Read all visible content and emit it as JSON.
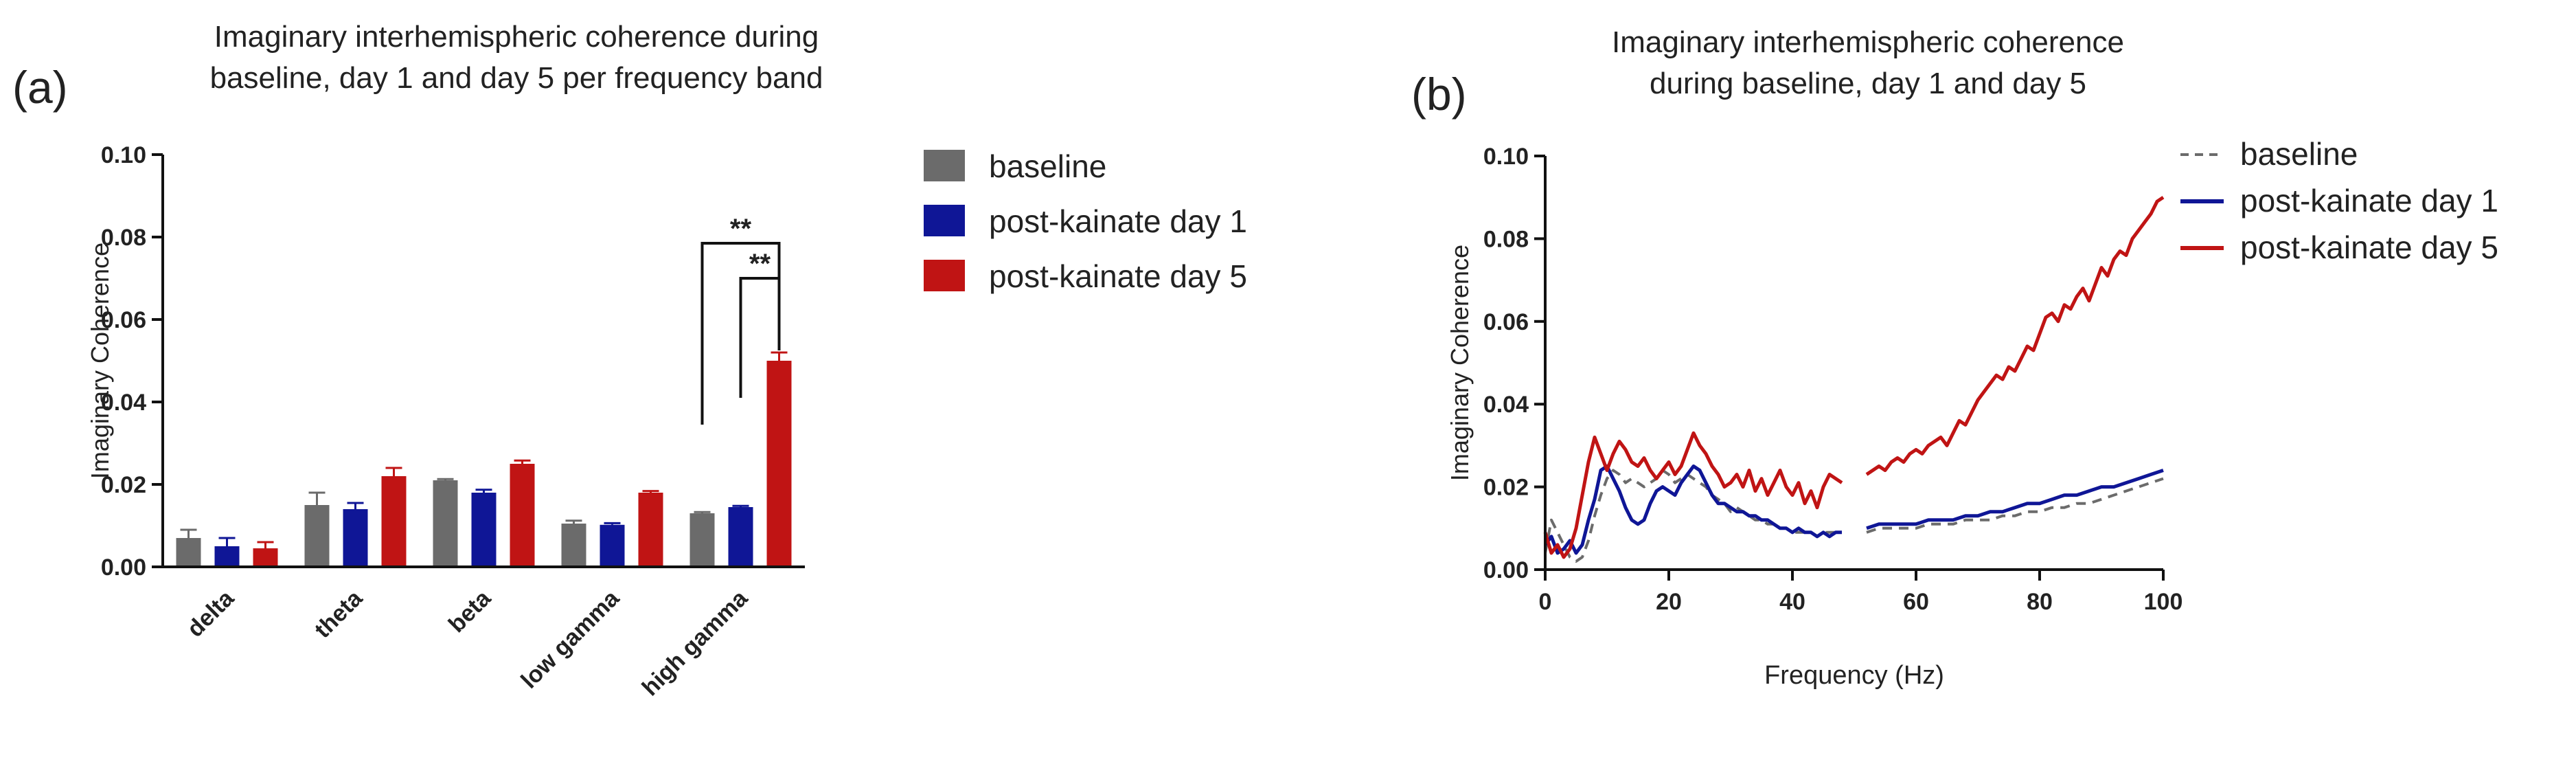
{
  "panel_a": {
    "letter": "(a)",
    "title_lines": [
      "Imaginary interhemispheric coherence during",
      "baseline, day 1 and day 5 per frequency band"
    ]
  },
  "panel_b": {
    "letter": "(b)",
    "title_lines": [
      "Imaginary interhemispheric coherence",
      "during baseline, day 1 and day 5"
    ]
  },
  "colors": {
    "baseline": "#6b6b6b",
    "day1": "#0f1696",
    "day5": "#c01414"
  },
  "chart_data": [
    {
      "type": "bar",
      "title": "Imaginary interhemispheric coherence during baseline, day 1 and day 5 per frequency band",
      "xlabel": "",
      "ylabel": "Imaginary Coherence",
      "ylim": [
        0,
        0.1
      ],
      "yticks": [
        "0.00",
        "0.02",
        "0.04",
        "0.06",
        "0.08",
        "0.10"
      ],
      "categories": [
        "delta",
        "theta",
        "beta",
        "low gamma",
        "high gamma"
      ],
      "series": [
        {
          "name": "baseline",
          "values": [
            0.007,
            0.015,
            0.021,
            0.0105,
            0.013
          ],
          "errors": [
            0.002,
            0.003,
            0.0003,
            0.0007,
            0.0003
          ]
        },
        {
          "name": "post-kainate day 1",
          "values": [
            0.005,
            0.014,
            0.018,
            0.0102,
            0.0145
          ],
          "errors": [
            0.002,
            0.0015,
            0.0007,
            0.0004,
            0.0003
          ]
        },
        {
          "name": "post-kainate day 5",
          "values": [
            0.0045,
            0.022,
            0.025,
            0.018,
            0.05
          ],
          "errors": [
            0.0015,
            0.002,
            0.0008,
            0.0004,
            0.002
          ]
        }
      ],
      "legend_position": "right",
      "annotations": [
        {
          "text": "**",
          "category": "high gamma",
          "from": "baseline",
          "to": "post-kainate day 5"
        },
        {
          "text": "**",
          "category": "high gamma",
          "from": "post-kainate day 1",
          "to": "post-kainate day 5"
        }
      ]
    },
    {
      "type": "line",
      "title": "Imaginary interhemispheric coherence during baseline, day 1 and day 5",
      "xlabel": "Frequency (Hz)",
      "ylabel": "Imaginary Coherence",
      "xlim": [
        0,
        100
      ],
      "ylim": [
        0,
        0.1
      ],
      "xticks": [
        "0",
        "20",
        "40",
        "60",
        "80",
        "100"
      ],
      "yticks": [
        "0.00",
        "0.02",
        "0.04",
        "0.06",
        "0.08",
        "0.10"
      ],
      "legend_position": "top-right",
      "series": [
        {
          "name": "baseline",
          "style": "dashed",
          "x": [
            0,
            1,
            2,
            3,
            4,
            5,
            6,
            7,
            8,
            9,
            10,
            11,
            12,
            13,
            14,
            15,
            16,
            17,
            18,
            19,
            20,
            21,
            22,
            23,
            24,
            25,
            26,
            27,
            28,
            29,
            30,
            31,
            32,
            33,
            34,
            35,
            36,
            37,
            38,
            39,
            40,
            41,
            42,
            43,
            44,
            45,
            46,
            47,
            48,
            null,
            52,
            54,
            56,
            58,
            60,
            62,
            64,
            66,
            68,
            70,
            72,
            74,
            76,
            78,
            80,
            82,
            84,
            86,
            88,
            90,
            92,
            94,
            96,
            98,
            100
          ],
          "y": [
            0.004,
            0.012,
            0.009,
            0.006,
            0.003,
            0.002,
            0.003,
            0.007,
            0.013,
            0.018,
            0.022,
            0.024,
            0.023,
            0.021,
            0.022,
            0.021,
            0.02,
            0.021,
            0.022,
            0.024,
            0.023,
            0.021,
            0.022,
            0.023,
            0.022,
            0.021,
            0.02,
            0.018,
            0.017,
            0.016,
            0.014,
            0.015,
            0.014,
            0.013,
            0.012,
            0.012,
            0.011,
            0.011,
            0.01,
            0.01,
            0.009,
            0.009,
            0.009,
            0.009,
            0.008,
            0.009,
            0.009,
            0.009,
            0.009,
            null,
            0.009,
            0.01,
            0.01,
            0.01,
            0.01,
            0.011,
            0.011,
            0.011,
            0.012,
            0.012,
            0.012,
            0.013,
            0.013,
            0.014,
            0.014,
            0.015,
            0.015,
            0.016,
            0.016,
            0.017,
            0.018,
            0.019,
            0.02,
            0.021,
            0.022
          ]
        },
        {
          "name": "post-kainate day 1",
          "style": "solid",
          "x": [
            0,
            1,
            2,
            3,
            4,
            5,
            6,
            7,
            8,
            9,
            10,
            11,
            12,
            13,
            14,
            15,
            16,
            17,
            18,
            19,
            20,
            21,
            22,
            23,
            24,
            25,
            26,
            27,
            28,
            29,
            30,
            31,
            32,
            33,
            34,
            35,
            36,
            37,
            38,
            39,
            40,
            41,
            42,
            43,
            44,
            45,
            46,
            47,
            48,
            null,
            52,
            54,
            56,
            58,
            60,
            62,
            64,
            66,
            68,
            70,
            72,
            74,
            76,
            78,
            80,
            82,
            84,
            86,
            88,
            90,
            92,
            94,
            96,
            98,
            100
          ],
          "y": [
            0.006,
            0.008,
            0.004,
            0.005,
            0.007,
            0.004,
            0.006,
            0.012,
            0.017,
            0.024,
            0.025,
            0.022,
            0.019,
            0.015,
            0.012,
            0.011,
            0.012,
            0.016,
            0.019,
            0.02,
            0.019,
            0.018,
            0.021,
            0.023,
            0.025,
            0.024,
            0.021,
            0.018,
            0.016,
            0.016,
            0.015,
            0.014,
            0.014,
            0.013,
            0.013,
            0.012,
            0.012,
            0.011,
            0.01,
            0.01,
            0.009,
            0.01,
            0.009,
            0.009,
            0.008,
            0.009,
            0.008,
            0.009,
            0.009,
            null,
            0.01,
            0.011,
            0.011,
            0.011,
            0.011,
            0.012,
            0.012,
            0.012,
            0.013,
            0.013,
            0.014,
            0.014,
            0.015,
            0.016,
            0.016,
            0.017,
            0.018,
            0.018,
            0.019,
            0.02,
            0.02,
            0.021,
            0.022,
            0.023,
            0.024
          ]
        },
        {
          "name": "post-kainate day 5",
          "style": "solid",
          "x": [
            0,
            1,
            2,
            3,
            4,
            5,
            6,
            7,
            8,
            9,
            10,
            11,
            12,
            13,
            14,
            15,
            16,
            17,
            18,
            19,
            20,
            21,
            22,
            23,
            24,
            25,
            26,
            27,
            28,
            29,
            30,
            31,
            32,
            33,
            34,
            35,
            36,
            37,
            38,
            39,
            40,
            41,
            42,
            43,
            44,
            45,
            46,
            47,
            48,
            null,
            52,
            53,
            54,
            55,
            56,
            57,
            58,
            59,
            60,
            61,
            62,
            63,
            64,
            65,
            66,
            67,
            68,
            69,
            70,
            71,
            72,
            73,
            74,
            75,
            76,
            77,
            78,
            79,
            80,
            81,
            82,
            83,
            84,
            85,
            86,
            87,
            88,
            89,
            90,
            91,
            92,
            93,
            94,
            95,
            96,
            97,
            98,
            99,
            100
          ],
          "y": [
            0.009,
            0.004,
            0.006,
            0.003,
            0.005,
            0.01,
            0.018,
            0.026,
            0.032,
            0.028,
            0.024,
            0.028,
            0.031,
            0.029,
            0.026,
            0.025,
            0.027,
            0.024,
            0.022,
            0.024,
            0.026,
            0.023,
            0.025,
            0.029,
            0.033,
            0.03,
            0.028,
            0.025,
            0.023,
            0.02,
            0.021,
            0.023,
            0.02,
            0.024,
            0.019,
            0.022,
            0.018,
            0.021,
            0.024,
            0.02,
            0.018,
            0.021,
            0.016,
            0.019,
            0.015,
            0.02,
            0.023,
            0.022,
            0.021,
            null,
            0.023,
            0.024,
            0.025,
            0.024,
            0.026,
            0.027,
            0.026,
            0.028,
            0.029,
            0.028,
            0.03,
            0.031,
            0.032,
            0.03,
            0.033,
            0.036,
            0.035,
            0.038,
            0.041,
            0.043,
            0.045,
            0.047,
            0.046,
            0.049,
            0.048,
            0.051,
            0.054,
            0.053,
            0.057,
            0.061,
            0.062,
            0.06,
            0.064,
            0.063,
            0.066,
            0.068,
            0.065,
            0.069,
            0.073,
            0.071,
            0.075,
            0.077,
            0.076,
            0.08,
            0.082,
            0.084,
            0.086,
            0.089,
            0.09
          ]
        }
      ]
    }
  ]
}
